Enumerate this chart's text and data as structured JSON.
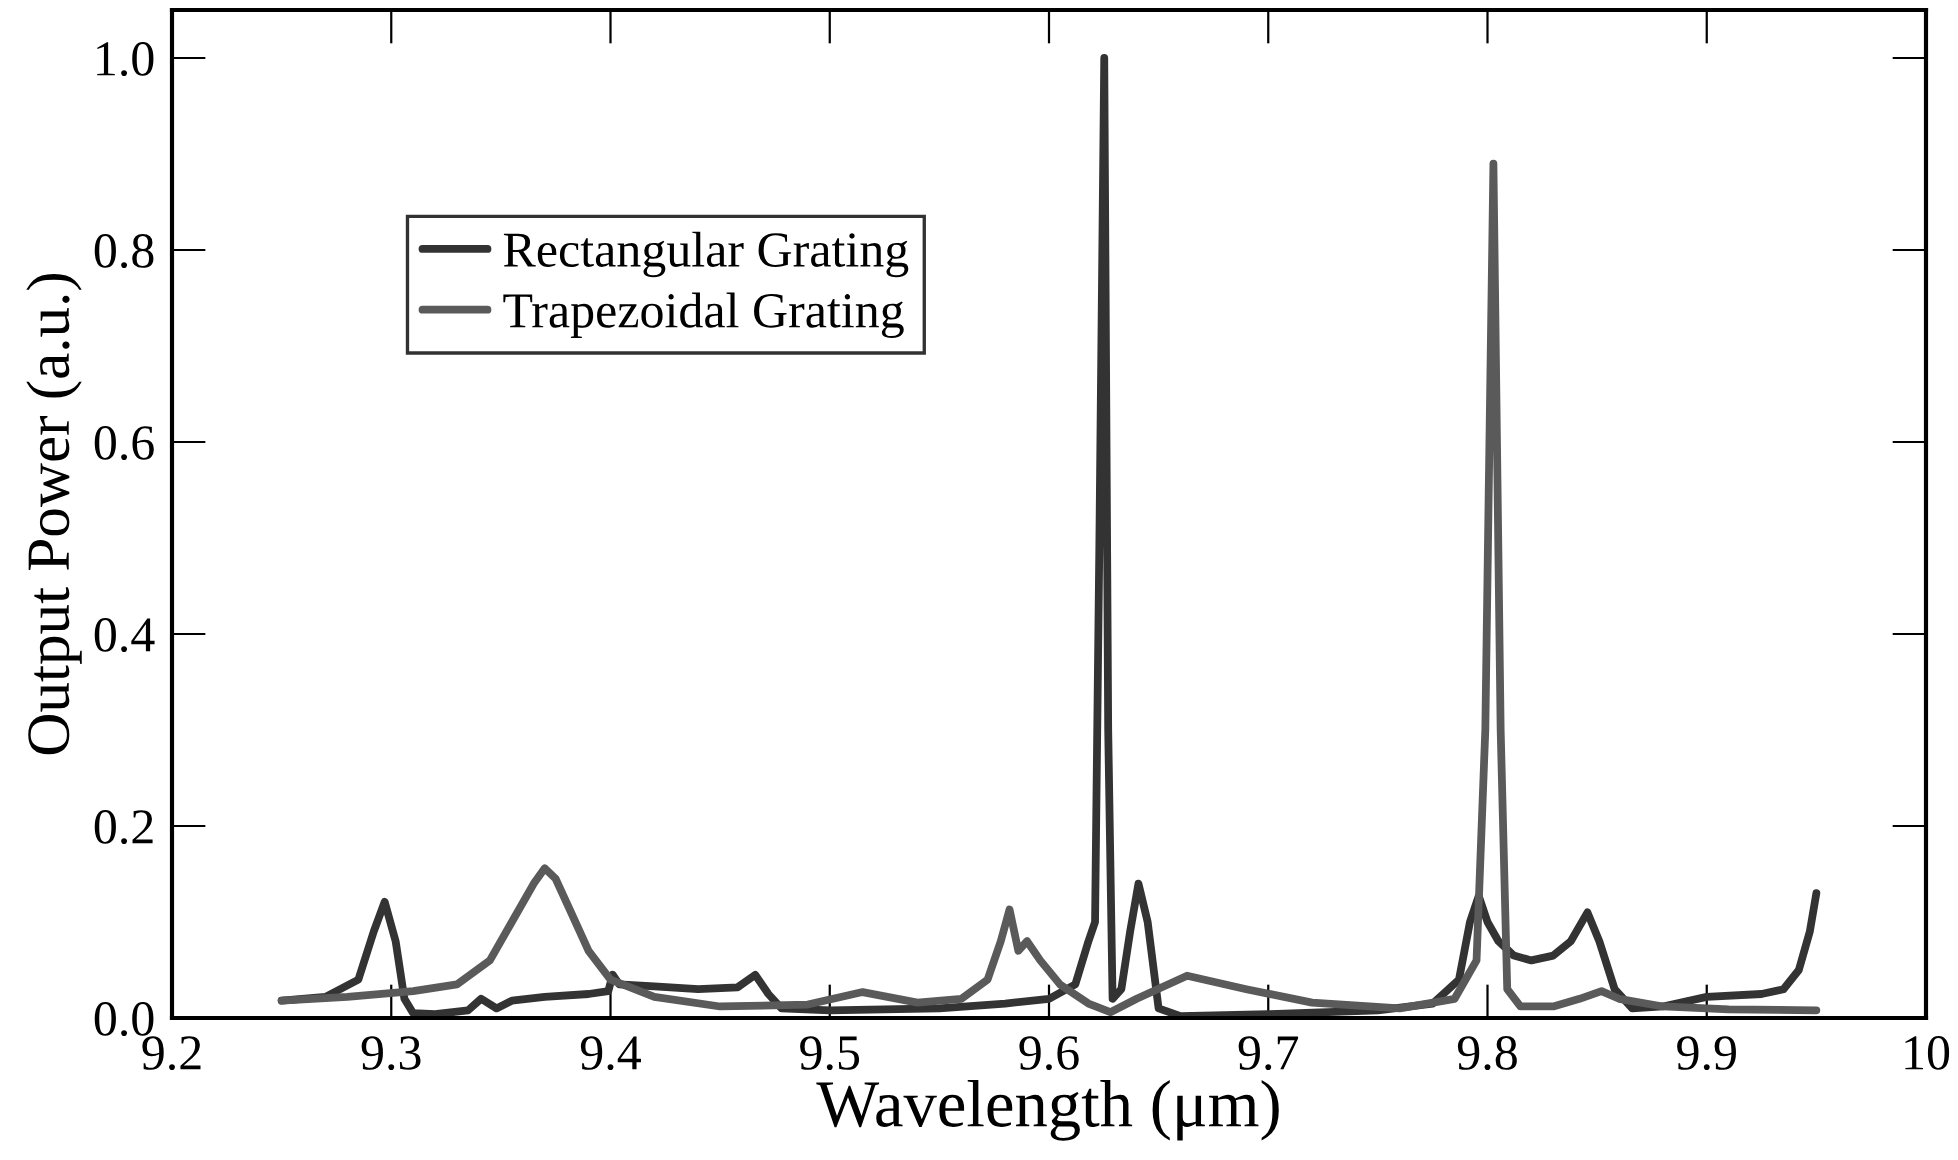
{
  "chart_data": {
    "type": "line",
    "xlabel": "Wavelength (μm)",
    "ylabel": "Output Power (a.u.)",
    "xlim": [
      9.2,
      10
    ],
    "ylim": [
      0,
      1.05
    ],
    "xticks": [
      9.2,
      9.3,
      9.4,
      9.5,
      9.6,
      9.7,
      9.8,
      9.9,
      10
    ],
    "yticks": [
      {
        "value": 0,
        "label": "0.0"
      },
      0.2,
      0.4,
      0.6,
      0.8,
      {
        "value": 1,
        "label": "1.0"
      }
    ],
    "grid": false,
    "legend": "top left",
    "marker": "none",
    "line_style": "solid",
    "series": [
      {
        "name": "Rectangular Grating",
        "color": "#333333",
        "x": [
          9.25,
          9.27,
          9.285,
          9.292,
          9.297,
          9.302,
          9.306,
          9.31,
          9.32,
          9.335,
          9.341,
          9.348,
          9.355,
          9.37,
          9.39,
          9.399,
          9.401,
          9.404,
          9.42,
          9.44,
          9.458,
          9.466,
          9.472,
          9.478,
          9.5,
          9.55,
          9.58,
          9.6,
          9.612,
          9.618,
          9.621,
          9.623,
          9.6252,
          9.627,
          9.629,
          9.633,
          9.637,
          9.6408,
          9.645,
          9.65,
          9.66,
          9.7,
          9.75,
          9.775,
          9.787,
          9.792,
          9.796,
          9.8,
          9.805,
          9.812,
          9.82,
          9.83,
          9.838,
          9.8456,
          9.851,
          9.858,
          9.866,
          9.88,
          9.9,
          9.925,
          9.935,
          9.942,
          9.947,
          9.95
        ],
        "values": [
          0.018,
          0.022,
          0.04,
          0.09,
          0.121,
          0.08,
          0.02,
          0.005,
          0.004,
          0.008,
          0.02,
          0.01,
          0.018,
          0.022,
          0.025,
          0.028,
          0.045,
          0.035,
          0.033,
          0.03,
          0.032,
          0.045,
          0.025,
          0.01,
          0.008,
          0.01,
          0.015,
          0.02,
          0.035,
          0.08,
          0.1,
          0.5,
          1.0,
          0.3,
          0.02,
          0.03,
          0.09,
          0.14,
          0.1,
          0.01,
          0.002,
          0.004,
          0.008,
          0.015,
          0.04,
          0.1,
          0.127,
          0.1,
          0.08,
          0.065,
          0.06,
          0.065,
          0.08,
          0.11,
          0.08,
          0.03,
          0.01,
          0.012,
          0.022,
          0.025,
          0.03,
          0.05,
          0.09,
          0.13
        ]
      },
      {
        "name": "Trapezoidal Grating",
        "color": "#5a5a5a",
        "x": [
          9.25,
          9.28,
          9.31,
          9.33,
          9.345,
          9.355,
          9.365,
          9.37,
          9.375,
          9.382,
          9.39,
          9.4,
          9.42,
          9.45,
          9.49,
          9.515,
          9.54,
          9.56,
          9.572,
          9.578,
          9.582,
          9.586,
          9.59,
          9.596,
          9.605,
          9.618,
          9.628,
          9.64,
          9.663,
          9.69,
          9.72,
          9.76,
          9.785,
          9.795,
          9.799,
          9.8027,
          9.806,
          9.809,
          9.815,
          9.83,
          9.842,
          9.852,
          9.86,
          9.88,
          9.91,
          9.95
        ],
        "values": [
          0.018,
          0.022,
          0.028,
          0.035,
          0.06,
          0.1,
          0.14,
          0.156,
          0.145,
          0.11,
          0.07,
          0.04,
          0.022,
          0.012,
          0.014,
          0.027,
          0.016,
          0.02,
          0.04,
          0.08,
          0.113,
          0.07,
          0.08,
          0.06,
          0.035,
          0.015,
          0.006,
          0.02,
          0.044,
          0.03,
          0.016,
          0.01,
          0.02,
          0.06,
          0.3,
          0.89,
          0.3,
          0.03,
          0.012,
          0.012,
          0.02,
          0.028,
          0.02,
          0.012,
          0.009,
          0.008
        ]
      }
    ]
  }
}
